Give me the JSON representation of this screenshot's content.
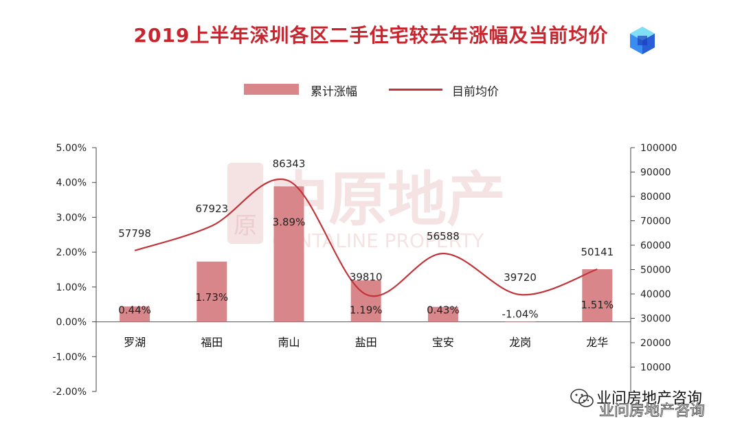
{
  "title": "2019上半年深圳各区二手住宅较去年涨幅及当前均价",
  "legend": {
    "bar_label": "累计涨幅",
    "line_label": "目前均价"
  },
  "watermark": {
    "cn": "中原地产",
    "en": "CENTALINE PROPERTY",
    "seal": "原"
  },
  "footer": {
    "account": "业问房地产咨询",
    "icon": "wechat-icon"
  },
  "colors": {
    "title": "#c8262f",
    "bar": "#d9868b",
    "line": "#c0343a"
  },
  "chart_data": {
    "type": "bar",
    "categories": [
      "罗湖",
      "福田",
      "南山",
      "盐田",
      "宝安",
      "龙岗",
      "龙华"
    ],
    "series": [
      {
        "name": "累计涨幅",
        "type": "bar",
        "axis": "left",
        "values": [
          0.44,
          1.73,
          3.89,
          1.19,
          0.43,
          -1.04,
          1.51
        ],
        "labels": [
          "0.44%",
          "1.73%",
          "3.89%",
          "1.19%",
          "0.43%",
          "-1.04%",
          "1.51%"
        ]
      },
      {
        "name": "目前均价",
        "type": "line",
        "axis": "right",
        "values": [
          57798,
          67923,
          86343,
          39810,
          56588,
          39720,
          50141
        ],
        "labels": [
          "57798",
          "67923",
          "86343",
          "39810",
          "56588",
          "39720",
          "50141"
        ]
      }
    ],
    "y_left": {
      "range": [
        -2,
        5
      ],
      "ticks": [
        "5.00%",
        "4.00%",
        "3.00%",
        "2.00%",
        "1.00%",
        "0.00%",
        "-1.00%",
        "-2.00%"
      ]
    },
    "y_right": {
      "range": [
        0,
        100000
      ],
      "ticks": [
        "100000",
        "90000",
        "80000",
        "70000",
        "60000",
        "50000",
        "40000",
        "30000",
        "20000",
        "10000"
      ]
    },
    "legend_position": "top",
    "grid": false
  }
}
